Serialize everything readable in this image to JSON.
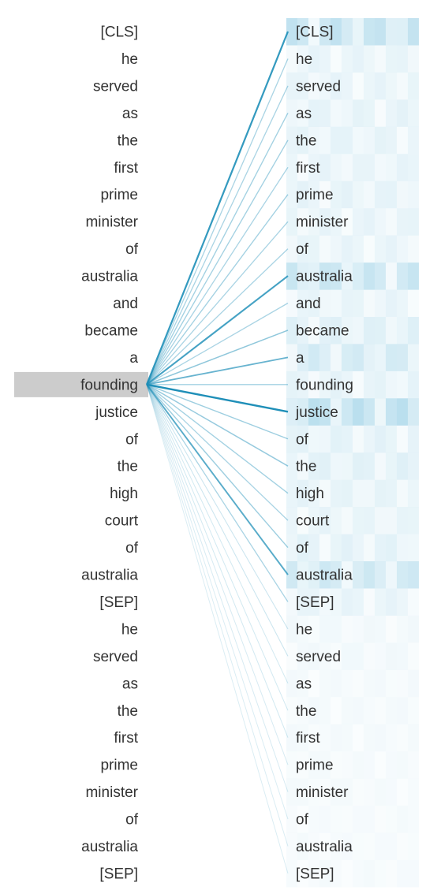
{
  "tokens": [
    "[CLS]",
    "he",
    "served",
    "as",
    "the",
    "first",
    "prime",
    "minister",
    "of",
    "australia",
    "and",
    "became",
    "a",
    "founding",
    "justice",
    "of",
    "the",
    "high",
    "court",
    "of",
    "australia",
    "[SEP]",
    "he",
    "served",
    "as",
    "the",
    "first",
    "prime",
    "minister",
    "of",
    "australia",
    "[SEP]"
  ],
  "selected_index": 13,
  "attention": [
    0.55,
    0.2,
    0.2,
    0.22,
    0.22,
    0.2,
    0.22,
    0.2,
    0.2,
    0.5,
    0.2,
    0.28,
    0.4,
    0.22,
    0.62,
    0.24,
    0.26,
    0.22,
    0.2,
    0.24,
    0.44,
    0.2,
    0.1,
    0.1,
    0.08,
    0.08,
    0.08,
    0.07,
    0.07,
    0.06,
    0.06,
    0.06
  ],
  "colors": {
    "line": "#1f8fb8",
    "highlight": "#cccccc",
    "text": "#333333",
    "heat": "#3fa6cf"
  }
}
